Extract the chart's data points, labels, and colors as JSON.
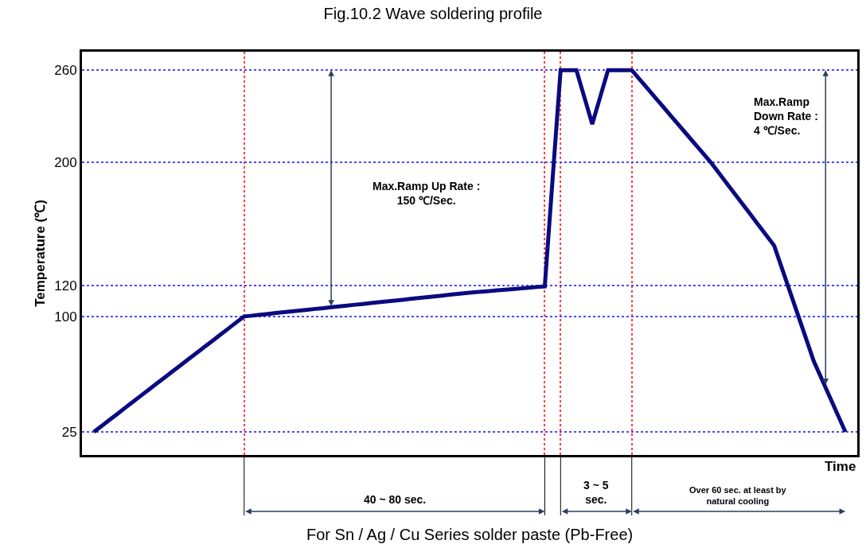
{
  "chart_data": {
    "type": "line",
    "title": "Fig.10.2 Wave soldering profile",
    "xlabel": "Time",
    "ylabel": "Temperature (℃)",
    "categories": [
      null,
      null,
      null,
      null,
      null,
      null,
      null,
      null,
      null,
      null,
      null,
      null,
      null,
      null,
      null,
      null,
      null,
      null,
      null,
      null,
      null,
      null,
      null,
      null,
      null,
      null,
      null,
      null,
      null,
      null,
      null,
      null,
      null,
      null,
      null,
      null,
      null,
      null,
      null,
      null,
      null,
      null,
      null,
      null,
      null,
      null,
      null,
      null,
      null,
      null,
      null,
      null,
      null,
      null,
      null,
      null,
      null,
      null,
      null,
      null,
      null,
      null,
      null,
      null,
      null,
      null,
      null,
      null,
      null,
      null,
      null,
      null,
      null,
      null,
      null,
      null,
      null,
      null,
      null,
      null,
      null,
      null,
      null,
      null,
      null,
      null,
      null,
      null,
      null,
      null,
      null,
      null,
      null,
      null,
      null,
      null
    ],
    "series": [
      {
        "color": "#0a0a80",
        "values": [
          25,
          28.9,
          32.9,
          36.8,
          40.8,
          44.7,
          48.7,
          52.6,
          56.6,
          60.5,
          64.5,
          68.4,
          72.4,
          76.3,
          80.3,
          84.2,
          88.2,
          92.1,
          96.1,
          100,
          100.5,
          101.1,
          101.6,
          102.2,
          102.7,
          103.3,
          103.8,
          104.3,
          104.9,
          105.4,
          106,
          106.5,
          107,
          107.6,
          108.1,
          108.7,
          109.2,
          109.7,
          110.3,
          110.8,
          111.4,
          111.9,
          112.5,
          113,
          113.5,
          114.1,
          114.6,
          115.2,
          115.7,
          116.1,
          116.5,
          117,
          117.4,
          117.8,
          118.2,
          118.6,
          119.1,
          119.5,
          190,
          260,
          260,
          260,
          242.5,
          225,
          242.5,
          260,
          260,
          260,
          260,
          254,
          248,
          242,
          236,
          230,
          224,
          218,
          212,
          206,
          200,
          193.3,
          186.5,
          179.8,
          173,
          166.3,
          159.5,
          152.8,
          146,
          131,
          116,
          101,
          86,
          71,
          59.5,
          48,
          36.5,
          25
        ]
      }
    ],
    "ylim": [
      10,
      272
    ],
    "yticks": [
      25,
      100,
      120,
      200,
      260
    ],
    "tick_labels": "y",
    "grid": true,
    "marker": "none",
    "line_style": "solid",
    "legend": false,
    "annotations": [
      "Max.Ramp Up Rate :\n150 ℃/Sec.",
      "Max.Ramp\nDown Rate :\n4 ℃/Sec.",
      "40 ~ 80 sec.",
      "3 ~ 5\nsec.",
      "Over 60 sec. at least by\nnatural cooling",
      "For Sn / Ag / Cu Series solder paste (Pb-Free)"
    ]
  }
}
